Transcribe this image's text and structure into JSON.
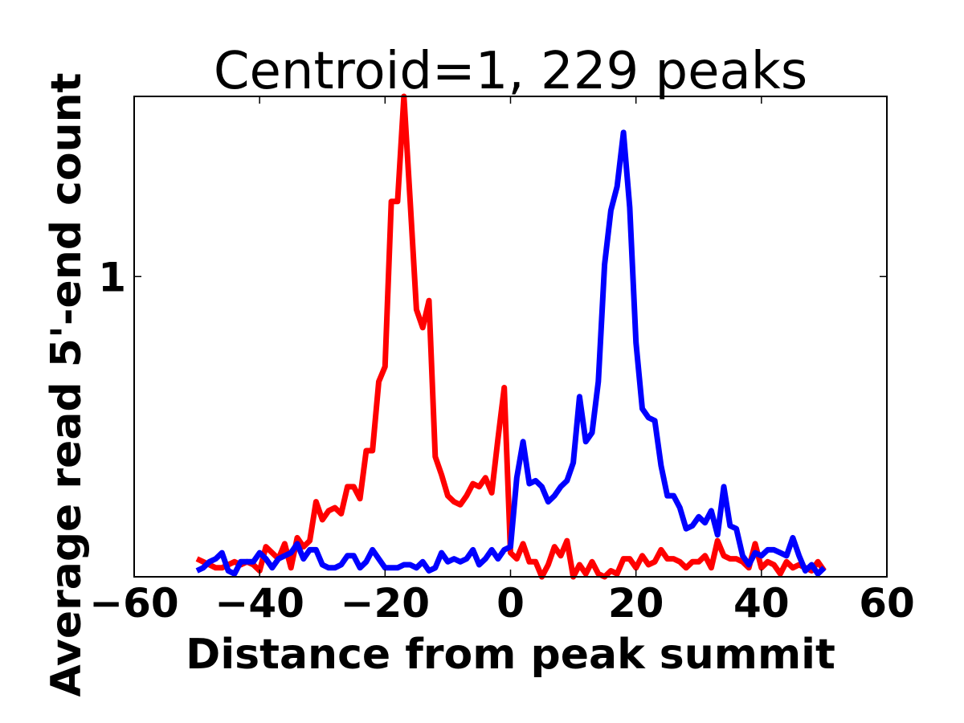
{
  "chart_data": {
    "type": "line",
    "title": "Centroid=1, 229 peaks",
    "xlabel": "Distance from peak summit",
    "ylabel": "Average read 5'-end count",
    "xlim": [
      -60,
      60
    ],
    "xticks": [
      -60,
      -40,
      -20,
      0,
      20,
      40,
      60
    ],
    "xtick_labels": [
      "−60",
      "−40",
      "−20",
      "0",
      "20",
      "40",
      "60"
    ],
    "ylim": [
      0.0,
      1.6
    ],
    "yticks": [
      1
    ],
    "ytick_labels": [
      "1"
    ],
    "grid": false,
    "legend": "none",
    "series": [
      {
        "color": "#ff0000",
        "x": [
          -50,
          -49,
          -48,
          -47,
          -46,
          -45,
          -44,
          -43,
          -42,
          -41,
          -40,
          -39,
          -38,
          -37,
          -36,
          -35,
          -34,
          -33,
          -32,
          -31,
          -30,
          -29,
          -28,
          -27,
          -26,
          -25,
          -24,
          -23,
          -22,
          -21,
          -20,
          -19,
          -18,
          -17,
          -16,
          -15,
          -14,
          -13,
          -12,
          -11,
          -10,
          -9,
          -8,
          -7,
          -6,
          -5,
          -4,
          -3,
          -2,
          -1,
          0,
          1,
          2,
          3,
          4,
          5,
          6,
          7,
          8,
          9,
          10,
          11,
          12,
          13,
          14,
          15,
          16,
          17,
          18,
          19,
          20,
          21,
          22,
          23,
          24,
          25,
          26,
          27,
          28,
          29,
          30,
          31,
          32,
          33,
          34,
          35,
          36,
          37,
          38,
          39,
          40,
          41,
          42,
          43,
          44,
          45,
          46,
          47,
          48,
          49,
          50
        ],
        "y": [
          0.06,
          0.05,
          0.04,
          0.03,
          0.03,
          0.04,
          0.05,
          0.04,
          0.05,
          0.04,
          0.02,
          0.1,
          0.08,
          0.06,
          0.11,
          0.03,
          0.13,
          0.1,
          0.12,
          0.25,
          0.19,
          0.22,
          0.23,
          0.21,
          0.3,
          0.3,
          0.26,
          0.42,
          0.42,
          0.65,
          0.7,
          1.25,
          1.25,
          1.6,
          1.25,
          0.89,
          0.83,
          0.92,
          0.4,
          0.34,
          0.27,
          0.25,
          0.24,
          0.27,
          0.31,
          0.3,
          0.33,
          0.28,
          0.46,
          0.63,
          0.08,
          0.06,
          0.11,
          0.05,
          0.05,
          0.0,
          0.04,
          0.1,
          0.07,
          0.12,
          0.0,
          0.04,
          0.01,
          0.05,
          0.01,
          0.0,
          0.02,
          0.01,
          0.06,
          0.06,
          0.03,
          0.07,
          0.04,
          0.05,
          0.09,
          0.06,
          0.06,
          0.05,
          0.03,
          0.05,
          0.05,
          0.07,
          0.03,
          0.12,
          0.07,
          0.06,
          0.06,
          0.05,
          0.03,
          0.11,
          0.03,
          0.05,
          0.04,
          0.01,
          0.05,
          0.03,
          0.04,
          0.03,
          0.02,
          0.05,
          0.02
        ]
      },
      {
        "color": "#0000ff",
        "x": [
          -50,
          -49,
          -48,
          -47,
          -46,
          -45,
          -44,
          -43,
          -42,
          -41,
          -40,
          -39,
          -38,
          -37,
          -36,
          -35,
          -34,
          -33,
          -32,
          -31,
          -30,
          -29,
          -28,
          -27,
          -26,
          -25,
          -24,
          -23,
          -22,
          -21,
          -20,
          -19,
          -18,
          -17,
          -16,
          -15,
          -14,
          -13,
          -12,
          -11,
          -10,
          -9,
          -8,
          -7,
          -6,
          -5,
          -4,
          -3,
          -2,
          -1,
          0,
          1,
          2,
          3,
          4,
          5,
          6,
          7,
          8,
          9,
          10,
          11,
          12,
          13,
          14,
          15,
          16,
          17,
          18,
          19,
          20,
          21,
          22,
          23,
          24,
          25,
          26,
          27,
          28,
          29,
          30,
          31,
          32,
          33,
          34,
          35,
          36,
          37,
          38,
          39,
          40,
          41,
          42,
          43,
          44,
          45,
          46,
          47,
          48,
          49,
          50
        ],
        "y": [
          0.02,
          0.03,
          0.05,
          0.06,
          0.08,
          0.02,
          0.01,
          0.05,
          0.05,
          0.05,
          0.08,
          0.06,
          0.03,
          0.06,
          0.07,
          0.08,
          0.11,
          0.06,
          0.09,
          0.09,
          0.04,
          0.03,
          0.03,
          0.04,
          0.07,
          0.07,
          0.03,
          0.05,
          0.09,
          0.06,
          0.03,
          0.03,
          0.03,
          0.04,
          0.04,
          0.03,
          0.05,
          0.02,
          0.03,
          0.08,
          0.05,
          0.06,
          0.05,
          0.06,
          0.09,
          0.04,
          0.06,
          0.09,
          0.06,
          0.09,
          0.1,
          0.33,
          0.45,
          0.31,
          0.32,
          0.3,
          0.25,
          0.27,
          0.3,
          0.32,
          0.38,
          0.6,
          0.45,
          0.48,
          0.65,
          1.04,
          1.22,
          1.3,
          1.48,
          1.23,
          0.78,
          0.56,
          0.53,
          0.52,
          0.37,
          0.27,
          0.27,
          0.23,
          0.16,
          0.17,
          0.2,
          0.18,
          0.22,
          0.14,
          0.3,
          0.17,
          0.16,
          0.07,
          0.04,
          0.08,
          0.07,
          0.09,
          0.09,
          0.08,
          0.07,
          0.13,
          0.07,
          0.02,
          0.04,
          0.01,
          0.03
        ]
      }
    ]
  }
}
